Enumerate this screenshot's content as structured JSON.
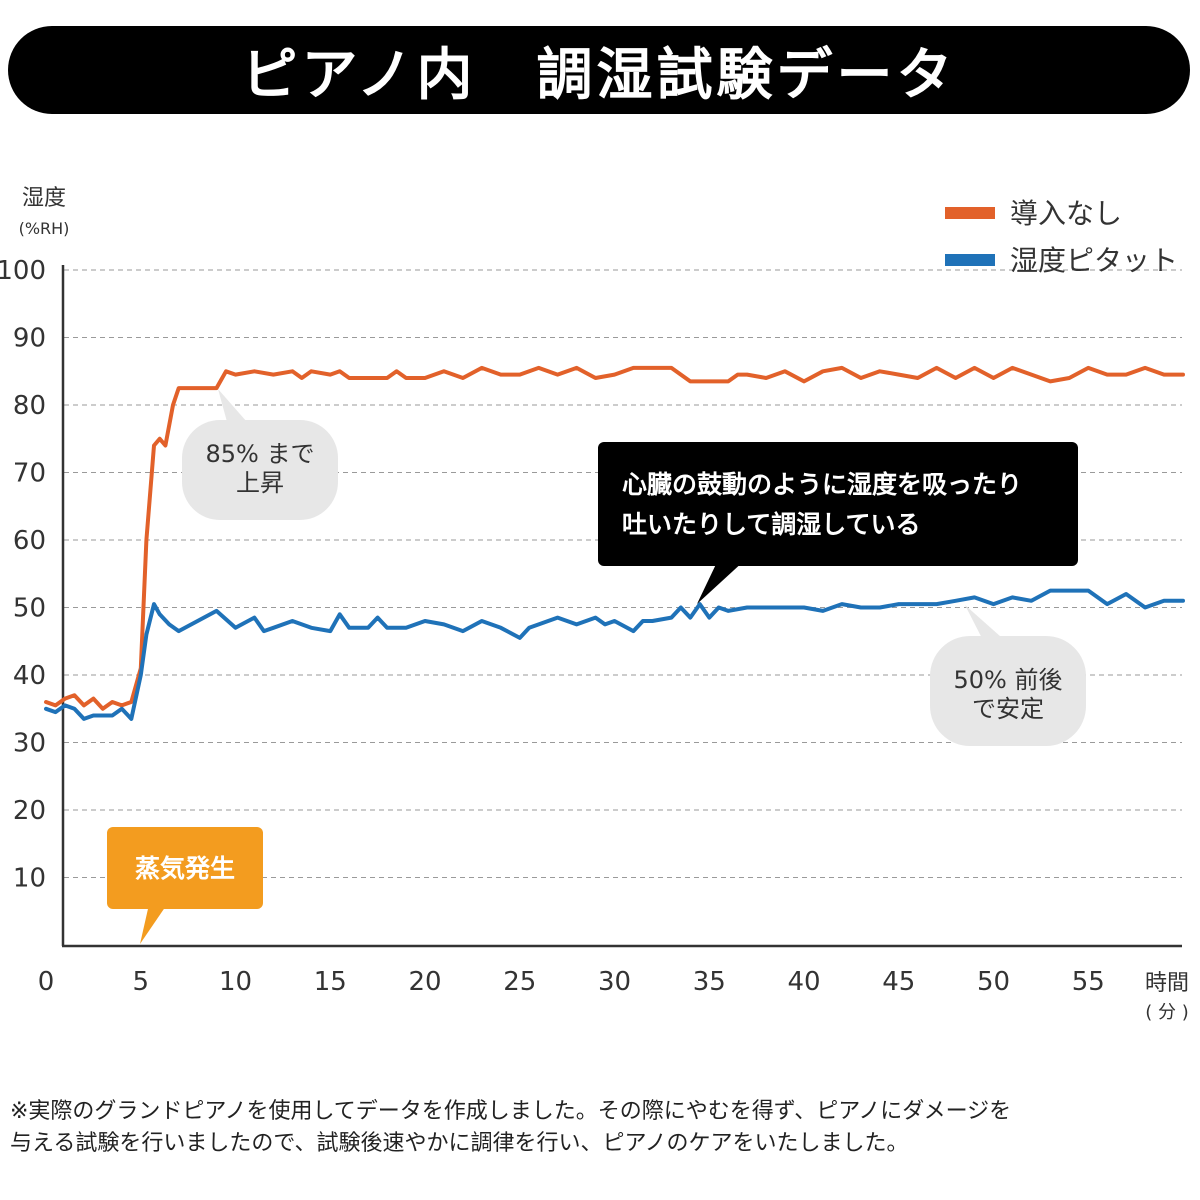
{
  "title": "ピアノ内　調湿試験データ",
  "footnote": {
    "line1": "※実際のグランドピアノを使用してデータを作成しました。その際にやむを得ず、ピアノにダメージを",
    "line2": "与える試験を行いましたので、試験後速やかに調律を行い、ピアノのケアをいたしました。"
  },
  "chart_data": {
    "type": "line",
    "ylabel": "湿度",
    "yunit": "(%RH)",
    "xlabel": "時間",
    "xunit": "( 分 )",
    "xlim": [
      0,
      60
    ],
    "ylim": [
      0,
      100
    ],
    "xticks": [
      0,
      5,
      10,
      15,
      20,
      25,
      30,
      35,
      40,
      45,
      50,
      55
    ],
    "yticks": [
      10,
      20,
      30,
      40,
      50,
      60,
      70,
      80,
      90,
      100
    ],
    "grid": "horizontal-dashed",
    "legend_position": "top-right",
    "series": [
      {
        "name": "導入なし",
        "color": "#e2612a",
        "x": [
          0,
          0.5,
          1,
          1.5,
          2,
          2.5,
          3,
          3.5,
          4,
          4.5,
          5,
          5.3,
          5.7,
          6,
          6.3,
          6.7,
          7,
          8,
          9,
          9.5,
          10,
          11,
          12,
          13,
          13.5,
          14,
          15,
          15.5,
          16,
          17,
          18,
          18.5,
          19,
          20,
          21,
          22,
          23,
          24,
          25,
          26,
          27,
          28,
          29,
          30,
          31,
          32,
          33,
          34,
          35,
          36,
          36.5,
          37,
          38,
          39,
          40,
          41,
          42,
          43,
          44,
          45,
          46,
          47,
          48,
          49,
          50,
          51,
          52,
          53,
          54,
          55,
          56,
          57,
          58,
          59,
          60
        ],
        "values": [
          36,
          35.5,
          36.5,
          37,
          35.5,
          36.5,
          35,
          36,
          35.5,
          36,
          41,
          60,
          74,
          75,
          74,
          80,
          82.5,
          82.5,
          82.5,
          85,
          84.5,
          85,
          84.5,
          85,
          84,
          85,
          84.5,
          85,
          84,
          84,
          84,
          85,
          84,
          84,
          85,
          84,
          85.5,
          84.5,
          84.5,
          85.5,
          84.5,
          85.5,
          84,
          84.5,
          85.5,
          85.5,
          85.5,
          83.5,
          83.5,
          83.5,
          84.5,
          84.5,
          84,
          85,
          83.5,
          85,
          85.5,
          84,
          85,
          84.5,
          84,
          85.5,
          84,
          85.5,
          84,
          85.5,
          84.5,
          83.5,
          84,
          85.5,
          84.5,
          84.5,
          85.5,
          84.5,
          84.5
        ]
      },
      {
        "name": "湿度ピタット",
        "color": "#1f72b8",
        "x": [
          0,
          0.5,
          1,
          1.5,
          2,
          2.5,
          3,
          3.5,
          4,
          4.5,
          5,
          5.3,
          5.7,
          6,
          6.5,
          7,
          8,
          9,
          10,
          11,
          11.5,
          12,
          13,
          14,
          15,
          15.5,
          16,
          17,
          17.5,
          18,
          19,
          20,
          21,
          22,
          23,
          24,
          25,
          25.5,
          26,
          27,
          28,
          29,
          29.5,
          30,
          31,
          31.5,
          32,
          33,
          33.5,
          34,
          34.5,
          35,
          35.5,
          36,
          37,
          38,
          39,
          40,
          41,
          42,
          43,
          44,
          45,
          46,
          47,
          48,
          49,
          50,
          51,
          52,
          53,
          54,
          55,
          56,
          57,
          58,
          59,
          60
        ],
        "values": [
          35,
          34.5,
          35.5,
          35,
          33.5,
          34,
          34,
          34,
          35,
          33.5,
          40,
          46,
          50.5,
          49,
          47.5,
          46.5,
          48,
          49.5,
          47,
          48.5,
          46.5,
          47,
          48,
          47,
          46.5,
          49,
          47,
          47,
          48.5,
          47,
          47,
          48,
          47.5,
          46.5,
          48,
          47,
          45.5,
          47,
          47.5,
          48.5,
          47.5,
          48.5,
          47.5,
          48,
          46.5,
          48,
          48,
          48.5,
          50,
          48.5,
          50.5,
          48.5,
          50,
          49.5,
          50,
          50,
          50,
          50,
          49.5,
          50.5,
          50,
          50,
          50.5,
          50.5,
          50.5,
          51,
          51.5,
          50.5,
          51.5,
          51,
          52.5,
          52.5,
          52.5,
          50.5,
          52,
          50,
          51,
          51
        ]
      }
    ],
    "annotations": {
      "rise": "85% まで\n上昇",
      "stable": "50% 前後\nで安定",
      "heartbeat": "心臓の鼓動のように湿度を吸ったり\n吐いたりして調湿している",
      "steam": "蒸気発生"
    },
    "colors": {
      "bubble_gray": "#e7e7e7",
      "bubble_black": "#000000",
      "bubble_orange": "#f39c1f",
      "axis": "#333333",
      "grid": "#9a9a9a"
    }
  }
}
